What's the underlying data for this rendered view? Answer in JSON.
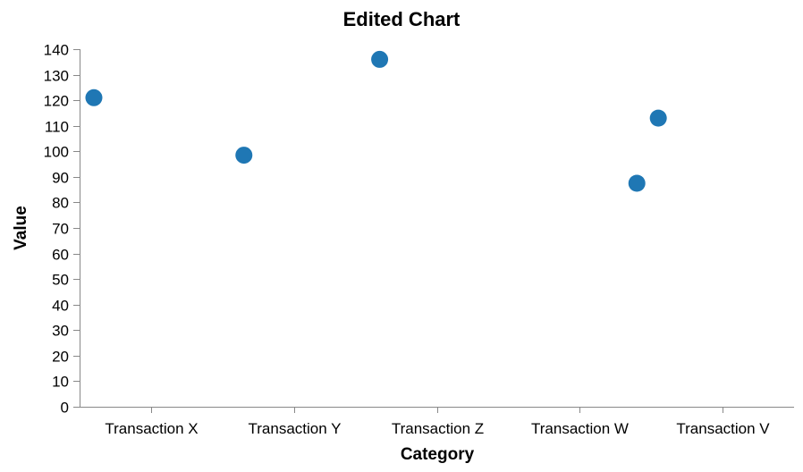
{
  "chart_data": {
    "type": "scatter",
    "title": "Edited Chart",
    "xlabel": "Category",
    "ylabel": "Value",
    "categories": [
      "Transaction X",
      "Transaction Y",
      "Transaction Z",
      "Transaction W",
      "Transaction V"
    ],
    "points": [
      {
        "category": "Transaction X",
        "value": 121,
        "offset": -0.4
      },
      {
        "category": "Transaction Y",
        "value": 98.5,
        "offset": -0.35
      },
      {
        "category": "Transaction Z",
        "value": 136,
        "offset": -0.4
      },
      {
        "category": "Transaction W",
        "value": 87.5,
        "offset": 0.4
      },
      {
        "category": "Transaction V",
        "value": 113,
        "offset": -0.45
      }
    ],
    "ylim": [
      0,
      140
    ],
    "yticks": [
      0,
      10,
      20,
      30,
      40,
      50,
      60,
      70,
      80,
      90,
      100,
      110,
      120,
      130,
      140
    ],
    "point_color": "#1f77b4",
    "grid": false
  }
}
